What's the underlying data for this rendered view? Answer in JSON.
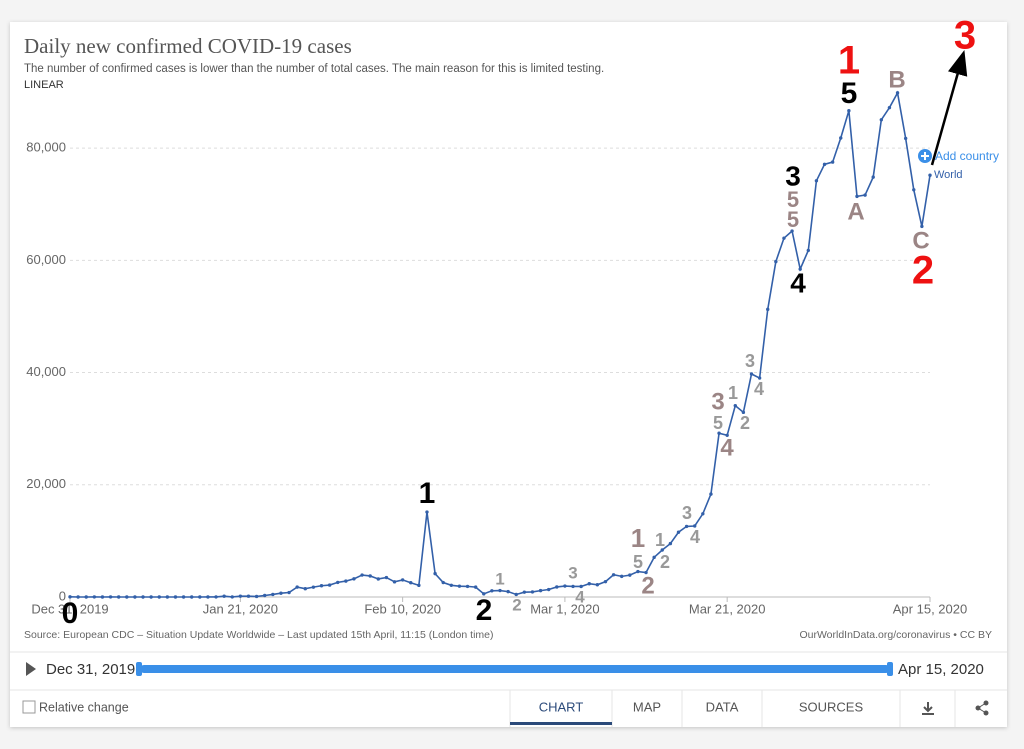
{
  "chart_data": {
    "type": "line",
    "title": "Daily new confirmed COVID-19 cases",
    "subtitle": "The number of confirmed cases is lower than the number of total cases. The main reason for this is limited testing.",
    "scale_label": "LINEAR",
    "source": "Source: European CDC – Situation Update Worldwide – Last updated 15th April, 11:15 (London time)",
    "credit": "OurWorldInData.org/coronavirus • CC BY",
    "add_country": "Add country",
    "timeline": {
      "start": "Dec 31, 2019",
      "end": "Apr 15, 2020"
    },
    "controls": {
      "checkbox": "Relative change",
      "tabs": [
        "CHART",
        "MAP",
        "DATA",
        "SOURCES"
      ]
    },
    "x": [
      "2019-12-31",
      "2020-01-01",
      "2020-01-02",
      "2020-01-03",
      "2020-01-04",
      "2020-01-05",
      "2020-01-06",
      "2020-01-07",
      "2020-01-08",
      "2020-01-09",
      "2020-01-10",
      "2020-01-11",
      "2020-01-12",
      "2020-01-13",
      "2020-01-14",
      "2020-01-15",
      "2020-01-16",
      "2020-01-17",
      "2020-01-18",
      "2020-01-19",
      "2020-01-20",
      "2020-01-21",
      "2020-01-22",
      "2020-01-23",
      "2020-01-24",
      "2020-01-25",
      "2020-01-26",
      "2020-01-27",
      "2020-01-28",
      "2020-01-29",
      "2020-01-30",
      "2020-01-31",
      "2020-02-01",
      "2020-02-02",
      "2020-02-03",
      "2020-02-04",
      "2020-02-05",
      "2020-02-06",
      "2020-02-07",
      "2020-02-08",
      "2020-02-09",
      "2020-02-10",
      "2020-02-11",
      "2020-02-12",
      "2020-02-13",
      "2020-02-14",
      "2020-02-15",
      "2020-02-16",
      "2020-02-17",
      "2020-02-18",
      "2020-02-19",
      "2020-02-20",
      "2020-02-21",
      "2020-02-22",
      "2020-02-23",
      "2020-02-24",
      "2020-02-25",
      "2020-02-26",
      "2020-02-27",
      "2020-02-28",
      "2020-02-29",
      "2020-03-01",
      "2020-03-02",
      "2020-03-03",
      "2020-03-04",
      "2020-03-05",
      "2020-03-06",
      "2020-03-07",
      "2020-03-08",
      "2020-03-09",
      "2020-03-10",
      "2020-03-11",
      "2020-03-12",
      "2020-03-13",
      "2020-03-14",
      "2020-03-15",
      "2020-03-16",
      "2020-03-17",
      "2020-03-18",
      "2020-03-19",
      "2020-03-20",
      "2020-03-21",
      "2020-03-22",
      "2020-03-23",
      "2020-03-24",
      "2020-03-25",
      "2020-03-26",
      "2020-03-27",
      "2020-03-28",
      "2020-03-29",
      "2020-03-30",
      "2020-03-31",
      "2020-04-01",
      "2020-04-02",
      "2020-04-03",
      "2020-04-04",
      "2020-04-05",
      "2020-04-06",
      "2020-04-07",
      "2020-04-08",
      "2020-04-09",
      "2020-04-10",
      "2020-04-11",
      "2020-04-12",
      "2020-04-13",
      "2020-04-14",
      "2020-04-15"
    ],
    "series": [
      {
        "name": "World",
        "color": "#3360a9",
        "values": [
          27,
          0,
          0,
          17,
          0,
          15,
          0,
          0,
          0,
          0,
          0,
          0,
          0,
          1,
          0,
          1,
          0,
          4,
          17,
          136,
          20,
          152,
          142,
          97,
          266,
          453,
          673,
          797,
          1767,
          1480,
          1757,
          2003,
          2127,
          2603,
          2836,
          3239,
          3914,
          3751,
          3217,
          3469,
          2703,
          3044,
          2549,
          2077,
          15140,
          4164,
          2576,
          2086,
          1930,
          1890,
          1761,
          566,
          1103,
          1153,
          959,
          451,
          858,
          904,
          1135,
          1334,
          1790,
          1955,
          1891,
          1874,
          2362,
          2183,
          2736,
          3961,
          3676,
          3900,
          4541,
          4357,
          7071,
          8378,
          9522,
          11541,
          12584,
          12656,
          14834,
          18340,
          29187,
          28819,
          34103,
          32913,
          39747,
          39022,
          51269,
          59779,
          63954,
          65224,
          58434,
          61765,
          74174,
          77111,
          77512,
          81802,
          86668,
          71397,
          71631,
          74828,
          85049,
          87211,
          89851,
          81729,
          72572,
          66046,
          75169
        ]
      }
    ],
    "xlim": [
      "2019-12-31",
      "2020-04-15"
    ],
    "xticks": [
      {
        "value": "2019-12-31",
        "label": "Dec 31, 2019"
      },
      {
        "value": "2020-01-21",
        "label": "Jan 21, 2020"
      },
      {
        "value": "2020-02-10",
        "label": "Feb 10, 2020"
      },
      {
        "value": "2020-03-01",
        "label": "Mar 1, 2020"
      },
      {
        "value": "2020-03-21",
        "label": "Mar 21, 2020"
      },
      {
        "value": "2020-04-15",
        "label": "Apr 15, 2020"
      }
    ],
    "ylim": [
      0,
      90000
    ],
    "yticks": [
      0,
      {
        "value": 20000,
        "label": "20,000"
      },
      {
        "value": 40000,
        "label": "40,000"
      },
      {
        "value": 60000,
        "label": "60,000"
      },
      {
        "value": 80000,
        "label": "80,000"
      }
    ],
    "grid": true,
    "annotations": [
      {
        "text": "0",
        "color": "#000000"
      },
      {
        "text": "1",
        "color": "#000000"
      },
      {
        "text": "2",
        "color": "#000000"
      },
      {
        "text": "1",
        "color": "#999999"
      },
      {
        "text": "2",
        "color": "#999999"
      },
      {
        "text": "3",
        "color": "#999999"
      },
      {
        "text": "4",
        "color": "#999999"
      },
      {
        "text": "1",
        "color": "#9b8585"
      },
      {
        "text": "5",
        "color": "#999999"
      },
      {
        "text": "2",
        "color": "#9b8585"
      },
      {
        "text": "1",
        "color": "#999999"
      },
      {
        "text": "2",
        "color": "#999999"
      },
      {
        "text": "3",
        "color": "#999999"
      },
      {
        "text": "4",
        "color": "#999999"
      },
      {
        "text": "3",
        "color": "#9b8585"
      },
      {
        "text": "5",
        "color": "#999999"
      },
      {
        "text": "4",
        "color": "#9b8585"
      },
      {
        "text": "1",
        "color": "#999999"
      },
      {
        "text": "2",
        "color": "#999999"
      },
      {
        "text": "3",
        "color": "#999999"
      },
      {
        "text": "4",
        "color": "#999999"
      },
      {
        "text": "3",
        "color": "#000000"
      },
      {
        "text": "5",
        "color": "#9b8585"
      },
      {
        "text": "5",
        "color": "#9b8585"
      },
      {
        "text": "4",
        "color": "#000000"
      },
      {
        "text": "1",
        "color": "#ee1111"
      },
      {
        "text": "5",
        "color": "#000000"
      },
      {
        "text": "A",
        "color": "#9b8585"
      },
      {
        "text": "B",
        "color": "#9b8585"
      },
      {
        "text": "C",
        "color": "#9b8585"
      },
      {
        "text": "2",
        "color": "#ee1111"
      },
      {
        "text": "3",
        "color": "#ee1111"
      }
    ]
  }
}
